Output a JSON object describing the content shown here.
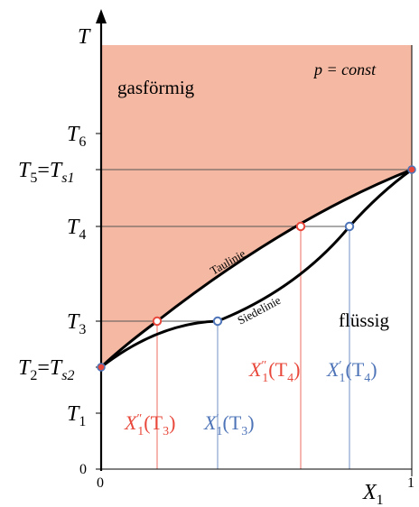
{
  "diagram": {
    "axes": {
      "y_label": "T",
      "x_label": "X",
      "x_label_sub": "1",
      "x_tick_min": "0",
      "x_tick_max": "1",
      "y_tick_zero": "0"
    },
    "y_ticks": {
      "T6": {
        "base": "T",
        "sub": "6"
      },
      "T5": {
        "base": "T",
        "sub": "5",
        "eq": "=",
        "base2": "T",
        "sub2": "s1"
      },
      "T4": {
        "base": "T",
        "sub": "4"
      },
      "T3": {
        "base": "T",
        "sub": "3"
      },
      "T2": {
        "base": "T",
        "sub": "2",
        "eq": "=",
        "base2": "T",
        "sub2": "s2"
      },
      "T1": {
        "base": "T",
        "sub": "1"
      }
    },
    "regions": {
      "gas": "gasförmig",
      "liquid": "flüssig",
      "pressure": "p = const"
    },
    "curves": {
      "dew": "Taulinie",
      "boiling": "Siedelinie"
    },
    "annotations": {
      "x2_T3": {
        "sym": "X",
        "sup": "″",
        "sub": "1",
        "arg": "(T",
        "argsub": "3",
        "close": ")"
      },
      "x1_T3": {
        "sym": "X",
        "sup": "′",
        "sub": "1",
        "arg": "(T",
        "argsub": "3",
        "close": ")"
      },
      "x2_T4": {
        "sym": "X",
        "sup": "″",
        "sub": "1",
        "arg": "(T",
        "argsub": "4",
        "close": ")"
      },
      "x1_T4": {
        "sym": "X",
        "sup": "′",
        "sub": "1",
        "arg": "(T",
        "argsub": "4",
        "close": ")"
      }
    },
    "colors": {
      "gas_region": "#f5b9a3",
      "vapor_point": "#e8473a",
      "liquid_point": "#4e74b8",
      "guide_line": "#555555",
      "curve": "#000000"
    }
  }
}
